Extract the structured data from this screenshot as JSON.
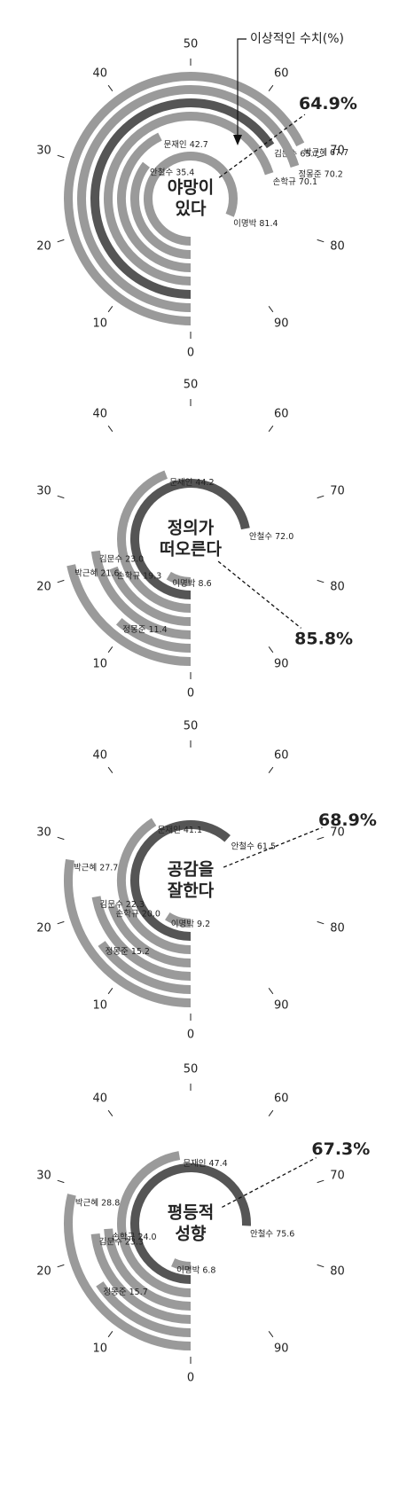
{
  "chart_data": [
    {
      "type": "radial-bar",
      "center_label": [
        "야망이",
        "있다"
      ],
      "annotation": "이상적인 수치(%)",
      "ideal": {
        "value": 64.9,
        "label": "64.9%"
      },
      "categories": [
        "이명박",
        "안철수",
        "문재인",
        "손학규",
        "김문수",
        "정몽준",
        "박근혜"
      ],
      "values": [
        81.4,
        35.4,
        42.7,
        70.1,
        65.7,
        70.2,
        67.7
      ],
      "value_labels": [
        "81.4",
        "35.4",
        "42.7",
        "70.1",
        "65.7",
        "70.2",
        "67.7"
      ],
      "colors": [
        "#9a9a9a",
        "#9a9a9a",
        "#9a9a9a",
        "#9a9a9a",
        "#555555",
        "#9a9a9a",
        "#9a9a9a"
      ],
      "ylim": [
        0,
        100
      ],
      "yticks": [
        0,
        10,
        20,
        30,
        40,
        50,
        60,
        70,
        80,
        90
      ]
    },
    {
      "type": "radial-bar",
      "center_label": [
        "정의가",
        "떠오른다"
      ],
      "ideal": {
        "value": 85.8,
        "label": "85.8%"
      },
      "categories": [
        "이명박",
        "안철수",
        "문재인",
        "손학규",
        "김문수",
        "정몽준",
        "박근혜"
      ],
      "values": [
        8.6,
        72.0,
        44.2,
        19.3,
        23.0,
        11.4,
        21.6
      ],
      "value_labels": [
        "8.6",
        "72.0",
        "44.2",
        "19.3",
        "23.0",
        "11.4",
        "21.6"
      ],
      "colors": [
        "#9a9a9a",
        "#555555",
        "#9a9a9a",
        "#9a9a9a",
        "#9a9a9a",
        "#9a9a9a",
        "#9a9a9a"
      ],
      "ylim": [
        0,
        100
      ],
      "yticks": [
        0,
        10,
        20,
        30,
        40,
        50,
        60,
        70,
        80,
        90
      ]
    },
    {
      "type": "radial-bar",
      "center_label": [
        "공감을",
        "잘한다"
      ],
      "ideal": {
        "value": 68.9,
        "label": "68.9%"
      },
      "categories": [
        "이명박",
        "안철수",
        "문재인",
        "손학규",
        "김문수",
        "정몽준",
        "박근혜"
      ],
      "values": [
        9.2,
        61.5,
        41.1,
        20.0,
        22.3,
        15.2,
        27.7
      ],
      "value_labels": [
        "9.2",
        "61.5",
        "41.1",
        "20.0",
        "22.3",
        "15.2",
        "27.7"
      ],
      "colors": [
        "#9a9a9a",
        "#555555",
        "#9a9a9a",
        "#9a9a9a",
        "#9a9a9a",
        "#9a9a9a",
        "#9a9a9a"
      ],
      "ylim": [
        0,
        100
      ],
      "yticks": [
        0,
        10,
        20,
        30,
        40,
        50,
        60,
        70,
        80,
        90
      ]
    },
    {
      "type": "radial-bar",
      "center_label": [
        "평등적",
        "성향"
      ],
      "ideal": {
        "value": 67.3,
        "label": "67.3%"
      },
      "categories": [
        "이명박",
        "안철수",
        "문재인",
        "손학규",
        "김문수",
        "정몽준",
        "박근혜"
      ],
      "values": [
        6.8,
        75.6,
        47.4,
        24.0,
        23.3,
        15.7,
        28.8
      ],
      "value_labels": [
        "6.8",
        "75.6",
        "47.4",
        "24.0",
        "23.3",
        "15.7",
        "28.8"
      ],
      "colors": [
        "#9a9a9a",
        "#555555",
        "#9a9a9a",
        "#9a9a9a",
        "#9a9a9a",
        "#9a9a9a",
        "#9a9a9a"
      ],
      "ylim": [
        0,
        100
      ],
      "yticks": [
        0,
        10,
        20,
        30,
        40,
        50,
        60,
        70,
        80,
        90
      ]
    }
  ]
}
